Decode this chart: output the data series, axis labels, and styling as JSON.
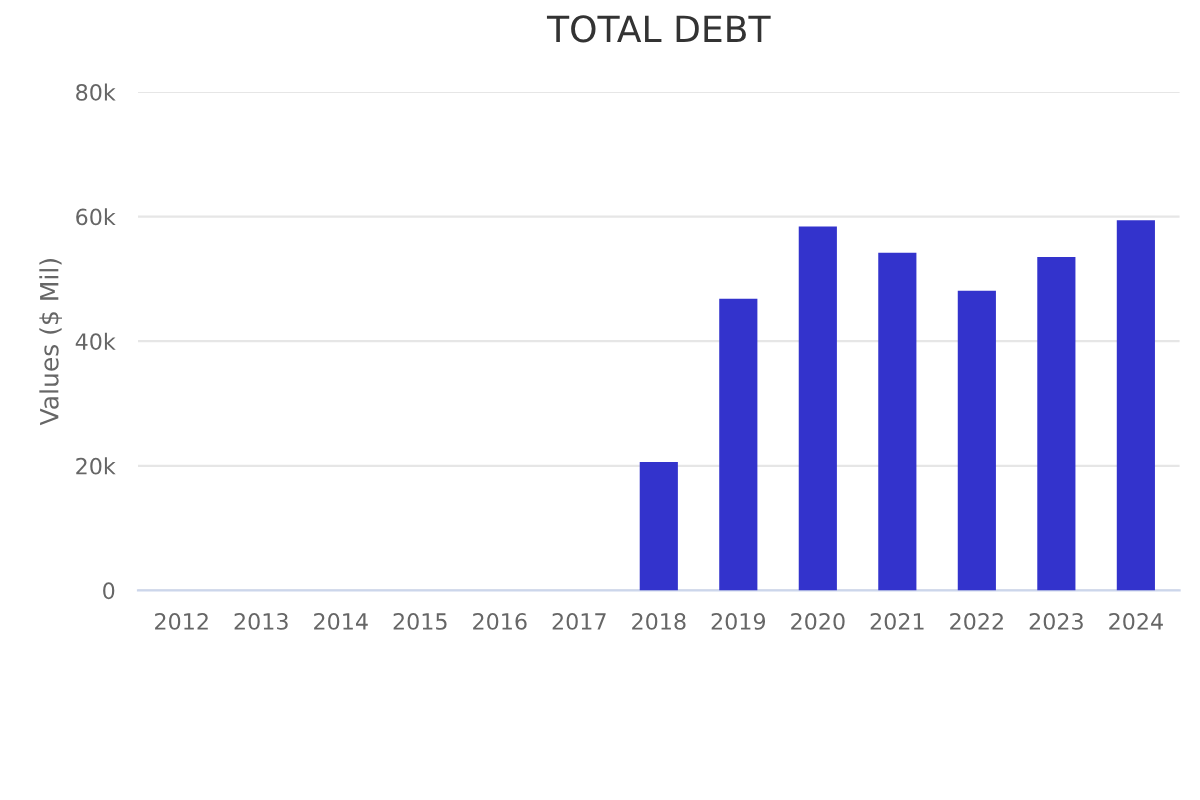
{
  "chart_data": {
    "type": "bar",
    "title": "TOTAL DEBT",
    "ylabel": "Values ($ Mil)",
    "categories": [
      "2012",
      "2013",
      "2014",
      "2015",
      "2016",
      "2017",
      "2018",
      "2019",
      "2020",
      "2021",
      "2022",
      "2023",
      "2024"
    ],
    "series": [
      {
        "color": "#3333cc",
        "values": [
          null,
          null,
          null,
          null,
          null,
          null,
          20600,
          46800,
          58400,
          54200,
          48100,
          53500,
          59400
        ]
      }
    ],
    "ylim": [
      0,
      80000
    ],
    "yticks": [
      0,
      {
        "value": 20000,
        "label": "20k"
      },
      {
        "value": 40000,
        "label": "40k"
      },
      {
        "value": 60000,
        "label": "60k"
      },
      {
        "value": 80000,
        "label": "80k"
      }
    ],
    "grid": "y"
  }
}
